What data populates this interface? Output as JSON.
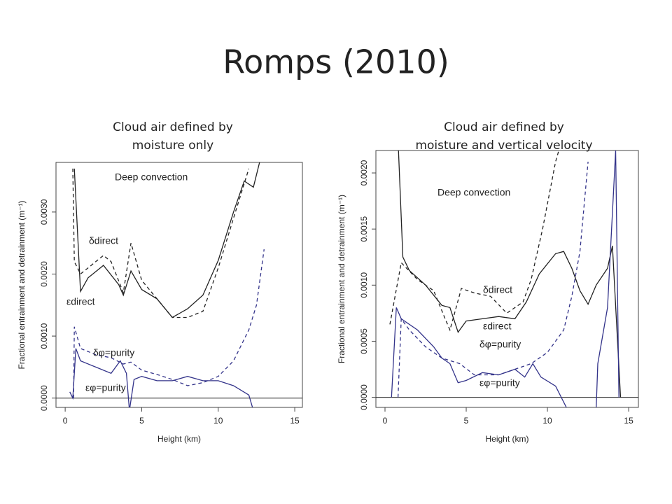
{
  "title": "Romps (2010)",
  "chart_data": [
    {
      "type": "line",
      "title": [
        "Cloud air defined by",
        "moisture only"
      ],
      "annotation": "Deep convection",
      "xlabel": "Height (km)",
      "ylabel": "Fractional entrainment and detrainment (m⁻¹)",
      "xlim": [
        -0.6,
        15.5
      ],
      "ylim": [
        -0.00015,
        0.0038
      ],
      "xticks": [
        0,
        5,
        10,
        15
      ],
      "yticks": [
        {
          "value": 0,
          "label": "0.0000"
        },
        {
          "value": 0.001,
          "label": "0.0010"
        },
        {
          "value": 0.002,
          "label": "0.0020"
        },
        {
          "value": 0.003,
          "label": "0.0030"
        }
      ],
      "hline": 0,
      "series": [
        {
          "name": "δdirect",
          "color": "#222222",
          "dash": true,
          "x": [
            0.5,
            0.6,
            1,
            2,
            2.5,
            3,
            3.8,
            4.3,
            5,
            6,
            7,
            8,
            9,
            10,
            11,
            12
          ],
          "values": [
            0.0037,
            0.0022,
            0.002,
            0.0022,
            0.0023,
            0.0022,
            0.0017,
            0.0025,
            0.0019,
            0.0016,
            0.0013,
            0.0013,
            0.0014,
            0.0021,
            0.0029,
            0.0037
          ]
        },
        {
          "name": "εdirect",
          "color": "#222222",
          "dash": false,
          "x": [
            0.6,
            1,
            1.5,
            2.5,
            3.5,
            3.8,
            4.3,
            5,
            6,
            7,
            8,
            9,
            10,
            11,
            11.7,
            12.3,
            12.7
          ],
          "values": [
            0.0037,
            0.00172,
            0.00194,
            0.00214,
            0.00183,
            0.00166,
            0.00205,
            0.00175,
            0.0016,
            0.0013,
            0.00144,
            0.00166,
            0.00222,
            0.003,
            0.0035,
            0.0034,
            0.0038
          ]
        },
        {
          "name": "δφ=purity",
          "color": "#33338a",
          "dash": true,
          "x": [
            0.55,
            0.6,
            1,
            2,
            3,
            3.8,
            4.3,
            5,
            6,
            7,
            8,
            9,
            10,
            11,
            12,
            12.5,
            13
          ],
          "values": [
            0,
            0.00115,
            0.0008,
            0.0007,
            0.00065,
            0.00055,
            0.00058,
            0.00045,
            0.00038,
            0.0003,
            0.0002,
            0.00025,
            0.00035,
            0.0006,
            0.0011,
            0.0015,
            0.0024
          ]
        },
        {
          "name": "εφ=purity",
          "color": "#33338a",
          "dash": false,
          "x": [
            0.3,
            0.5,
            0.7,
            1,
            2,
            3,
            3.6,
            4,
            4.2,
            4.5,
            5,
            6,
            7,
            8,
            9,
            10,
            11,
            12,
            12.3
          ],
          "values": [
            0.0001,
            0,
            0.0008,
            0.0006,
            0.0005,
            0.0004,
            0.0006,
            0.0004,
            -0.0002,
            0.0003,
            0.00035,
            0.00028,
            0.00028,
            0.00035,
            0.00028,
            0.00028,
            0.0002,
            5e-05,
            -0.0002
          ]
        }
      ]
    },
    {
      "type": "line",
      "title": [
        "Cloud air defined by",
        "moisture and vertical velocity"
      ],
      "annotation": "Deep convection",
      "xlabel": "Height (km)",
      "ylabel": "Fractional entrainment and detrainment (m⁻¹)",
      "xlim": [
        -0.56,
        15.6
      ],
      "ylim": [
        -9e-05,
        0.0022
      ],
      "xticks": [
        0,
        5,
        10,
        15
      ],
      "yticks": [
        {
          "value": 0,
          "label": "0.0000"
        },
        {
          "value": 0.0005,
          "label": "0.0005"
        },
        {
          "value": 0.001,
          "label": "0.0010"
        },
        {
          "value": 0.0015,
          "label": "0.0015"
        },
        {
          "value": 0.002,
          "label": "0.0020"
        }
      ],
      "hline": 0,
      "series": [
        {
          "name": "δdirect",
          "color": "#222222",
          "dash": true,
          "x": [
            0.3,
            1,
            2,
            3,
            3.7,
            4,
            4.7,
            5.5,
            6.5,
            7.5,
            8.5,
            9,
            9.7,
            10.5,
            10.9
          ],
          "values": [
            0.00065,
            0.0012,
            0.00105,
            0.00095,
            0.0007,
            0.0006,
            0.00097,
            0.00093,
            0.0009,
            0.00075,
            0.00085,
            0.00105,
            0.0015,
            0.0021,
            0.0023
          ]
        },
        {
          "name": "εdirect",
          "color": "#222222",
          "dash": false,
          "x": [
            0.8,
            1.1,
            1.5,
            2.5,
            3.5,
            4,
            4.5,
            5,
            6,
            7,
            8,
            8.7,
            9.5,
            10.5,
            11,
            11.5,
            12,
            12.5,
            13,
            13.7,
            14,
            14.5
          ],
          "values": [
            0.0023,
            0.00125,
            0.00113,
            0.001,
            0.00082,
            0.0008,
            0.00058,
            0.00068,
            0.0007,
            0.00072,
            0.0007,
            0.00085,
            0.0011,
            0.00128,
            0.0013,
            0.00115,
            0.00095,
            0.00083,
            0.001,
            0.00115,
            0.00135,
            0
          ]
        },
        {
          "name": "δφ=purity",
          "color": "#33338a",
          "dash": true,
          "x": [
            0.8,
            1,
            1.5,
            2.5,
            3.5,
            4.6,
            5.5,
            7,
            8,
            9,
            10,
            11,
            11.5,
            12,
            12.5
          ],
          "values": [
            0,
            0.0007,
            0.0006,
            0.00045,
            0.00035,
            0.0003,
            0.0002,
            0.0002,
            0.00025,
            0.0003,
            0.0004,
            0.0006,
            0.0009,
            0.0013,
            0.0021
          ]
        },
        {
          "name": "εφ=purity",
          "color": "#33338a",
          "dash": false,
          "x": [
            0.4,
            0.7,
            1,
            2,
            3,
            3.5,
            4,
            4.5,
            5,
            6,
            7,
            8,
            8.6,
            9.1,
            9.6,
            10.5,
            11.2,
            13,
            13.1,
            13.7,
            14.2,
            14.4
          ],
          "values": [
            0,
            0.0008,
            0.0007,
            0.0006,
            0.00045,
            0.00035,
            0.0003,
            0.00013,
            0.00015,
            0.00022,
            0.0002,
            0.00025,
            0.00018,
            0.0003,
            0.00018,
            0.0001,
            -0.0001,
            -0.0001,
            0.0003,
            0.0008,
            0.0022,
            0
          ]
        }
      ]
    }
  ]
}
